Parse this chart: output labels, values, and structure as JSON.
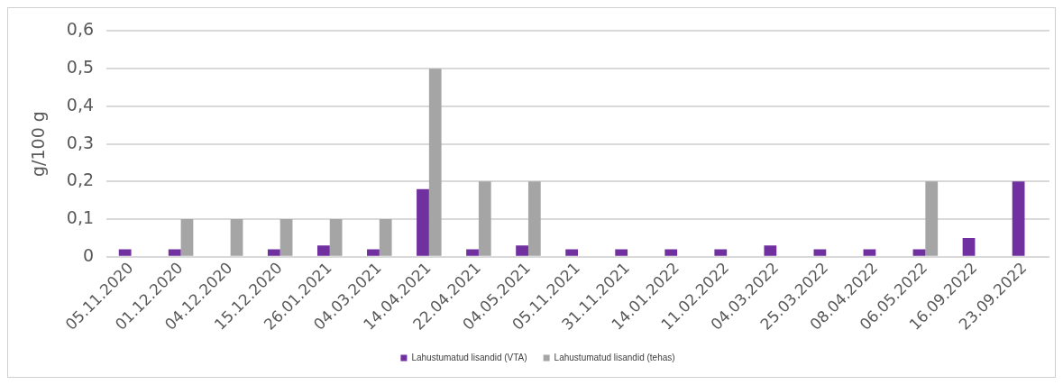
{
  "chart_data": {
    "type": "bar",
    "ylabel": "g/100 g",
    "categories": [
      "05.11.2020",
      "01.12.2020",
      "04.12.2020",
      "15.12.2020",
      "26.01.2021",
      "04.03.2021",
      "14.04.2021",
      "22.04.2021",
      "04.05.2021",
      "05.11.2021",
      "31.11.2021",
      "14.01.2022",
      "11.02.2022",
      "04.03.2022",
      "25.03.2022",
      "08.04.2022",
      "06.05.2022",
      "16.09.2022",
      "23.09.2022"
    ],
    "series": [
      {
        "name": "Lahustumatud lisandid (VTA)",
        "color": "#7030a0",
        "values": [
          0.02,
          0.02,
          null,
          0.02,
          0.03,
          0.02,
          0.18,
          0.02,
          0.03,
          0.02,
          0.02,
          0.02,
          0.02,
          0.03,
          0.02,
          0.02,
          0.02,
          0.05,
          0.2
        ]
      },
      {
        "name": "Lahustumatud lisandid (tehas)",
        "color": "#a5a5a5",
        "values": [
          null,
          0.1,
          0.1,
          0.1,
          0.1,
          0.1,
          0.5,
          0.2,
          0.2,
          null,
          null,
          null,
          null,
          null,
          null,
          null,
          0.2,
          null,
          null
        ]
      }
    ],
    "ylim": [
      0,
      0.6
    ],
    "yticks": [
      {
        "value": 0,
        "label": "0"
      },
      {
        "value": 0.1,
        "label": "0,1"
      },
      {
        "value": 0.2,
        "label": "0,2"
      },
      {
        "value": 0.3,
        "label": "0,3"
      },
      {
        "value": 0.4,
        "label": "0,4"
      },
      {
        "value": 0.5,
        "label": "0,5"
      },
      {
        "value": 0.6,
        "label": "0,6"
      }
    ],
    "grid": "y",
    "legend": "bottom"
  }
}
